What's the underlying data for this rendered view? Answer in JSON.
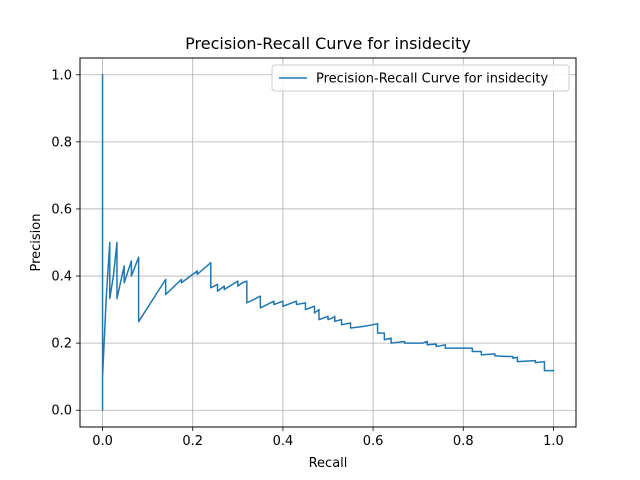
{
  "chart_data": {
    "type": "line",
    "title": "Precision-Recall Curve for insidecity",
    "xlabel": "Recall",
    "ylabel": "Precision",
    "xlim": [
      -0.05,
      1.05
    ],
    "ylim": [
      -0.05,
      1.05
    ],
    "x_ticks": [
      "0.0",
      "0.2",
      "0.4",
      "0.6",
      "0.8",
      "1.0"
    ],
    "y_ticks": [
      "0.0",
      "0.2",
      "0.4",
      "0.6",
      "0.8",
      "1.0"
    ],
    "grid": true,
    "legend_position": "upper right",
    "series": [
      {
        "name": "Precision-Recall Curve for insidecity",
        "color": "#1f77b4",
        "points": [
          [
            0.0,
            1.0
          ],
          [
            0.0,
            0.0
          ],
          [
            0.0,
            0.1
          ],
          [
            0.008,
            0.33
          ],
          [
            0.016,
            0.5
          ],
          [
            0.016,
            0.333
          ],
          [
            0.024,
            0.4
          ],
          [
            0.032,
            0.5
          ],
          [
            0.032,
            0.333
          ],
          [
            0.048,
            0.43
          ],
          [
            0.048,
            0.38
          ],
          [
            0.064,
            0.445
          ],
          [
            0.064,
            0.4
          ],
          [
            0.08,
            0.456
          ],
          [
            0.08,
            0.264
          ],
          [
            0.14,
            0.39
          ],
          [
            0.14,
            0.345
          ],
          [
            0.175,
            0.39
          ],
          [
            0.175,
            0.38
          ],
          [
            0.21,
            0.415
          ],
          [
            0.21,
            0.405
          ],
          [
            0.24,
            0.44
          ],
          [
            0.24,
            0.365
          ],
          [
            0.255,
            0.375
          ],
          [
            0.255,
            0.355
          ],
          [
            0.27,
            0.37
          ],
          [
            0.27,
            0.36
          ],
          [
            0.3,
            0.385
          ],
          [
            0.3,
            0.37
          ],
          [
            0.31,
            0.38
          ],
          [
            0.32,
            0.385
          ],
          [
            0.32,
            0.32
          ],
          [
            0.35,
            0.34
          ],
          [
            0.35,
            0.305
          ],
          [
            0.38,
            0.325
          ],
          [
            0.38,
            0.315
          ],
          [
            0.4,
            0.325
          ],
          [
            0.4,
            0.31
          ],
          [
            0.43,
            0.325
          ],
          [
            0.43,
            0.315
          ],
          [
            0.45,
            0.32
          ],
          [
            0.45,
            0.3
          ],
          [
            0.47,
            0.31
          ],
          [
            0.47,
            0.29
          ],
          [
            0.48,
            0.3
          ],
          [
            0.48,
            0.27
          ],
          [
            0.5,
            0.28
          ],
          [
            0.5,
            0.27
          ],
          [
            0.51,
            0.275
          ],
          [
            0.515,
            0.28
          ],
          [
            0.515,
            0.265
          ],
          [
            0.53,
            0.27
          ],
          [
            0.53,
            0.255
          ],
          [
            0.55,
            0.26
          ],
          [
            0.55,
            0.245
          ],
          [
            0.58,
            0.25
          ],
          [
            0.6,
            0.255
          ],
          [
            0.61,
            0.258
          ],
          [
            0.61,
            0.23
          ],
          [
            0.625,
            0.23
          ],
          [
            0.625,
            0.21
          ],
          [
            0.64,
            0.215
          ],
          [
            0.64,
            0.2
          ],
          [
            0.67,
            0.205
          ],
          [
            0.67,
            0.2
          ],
          [
            0.7,
            0.2
          ],
          [
            0.71,
            0.2
          ],
          [
            0.72,
            0.205
          ],
          [
            0.72,
            0.195
          ],
          [
            0.74,
            0.197
          ],
          [
            0.74,
            0.19
          ],
          [
            0.76,
            0.195
          ],
          [
            0.76,
            0.185
          ],
          [
            0.8,
            0.185
          ],
          [
            0.82,
            0.185
          ],
          [
            0.82,
            0.175
          ],
          [
            0.84,
            0.175
          ],
          [
            0.84,
            0.165
          ],
          [
            0.87,
            0.168
          ],
          [
            0.87,
            0.162
          ],
          [
            0.9,
            0.16
          ],
          [
            0.91,
            0.16
          ],
          [
            0.91,
            0.155
          ],
          [
            0.92,
            0.158
          ],
          [
            0.92,
            0.145
          ],
          [
            0.96,
            0.148
          ],
          [
            0.96,
            0.142
          ],
          [
            0.98,
            0.145
          ],
          [
            0.98,
            0.118
          ],
          [
            1.0,
            0.118
          ]
        ]
      }
    ]
  }
}
